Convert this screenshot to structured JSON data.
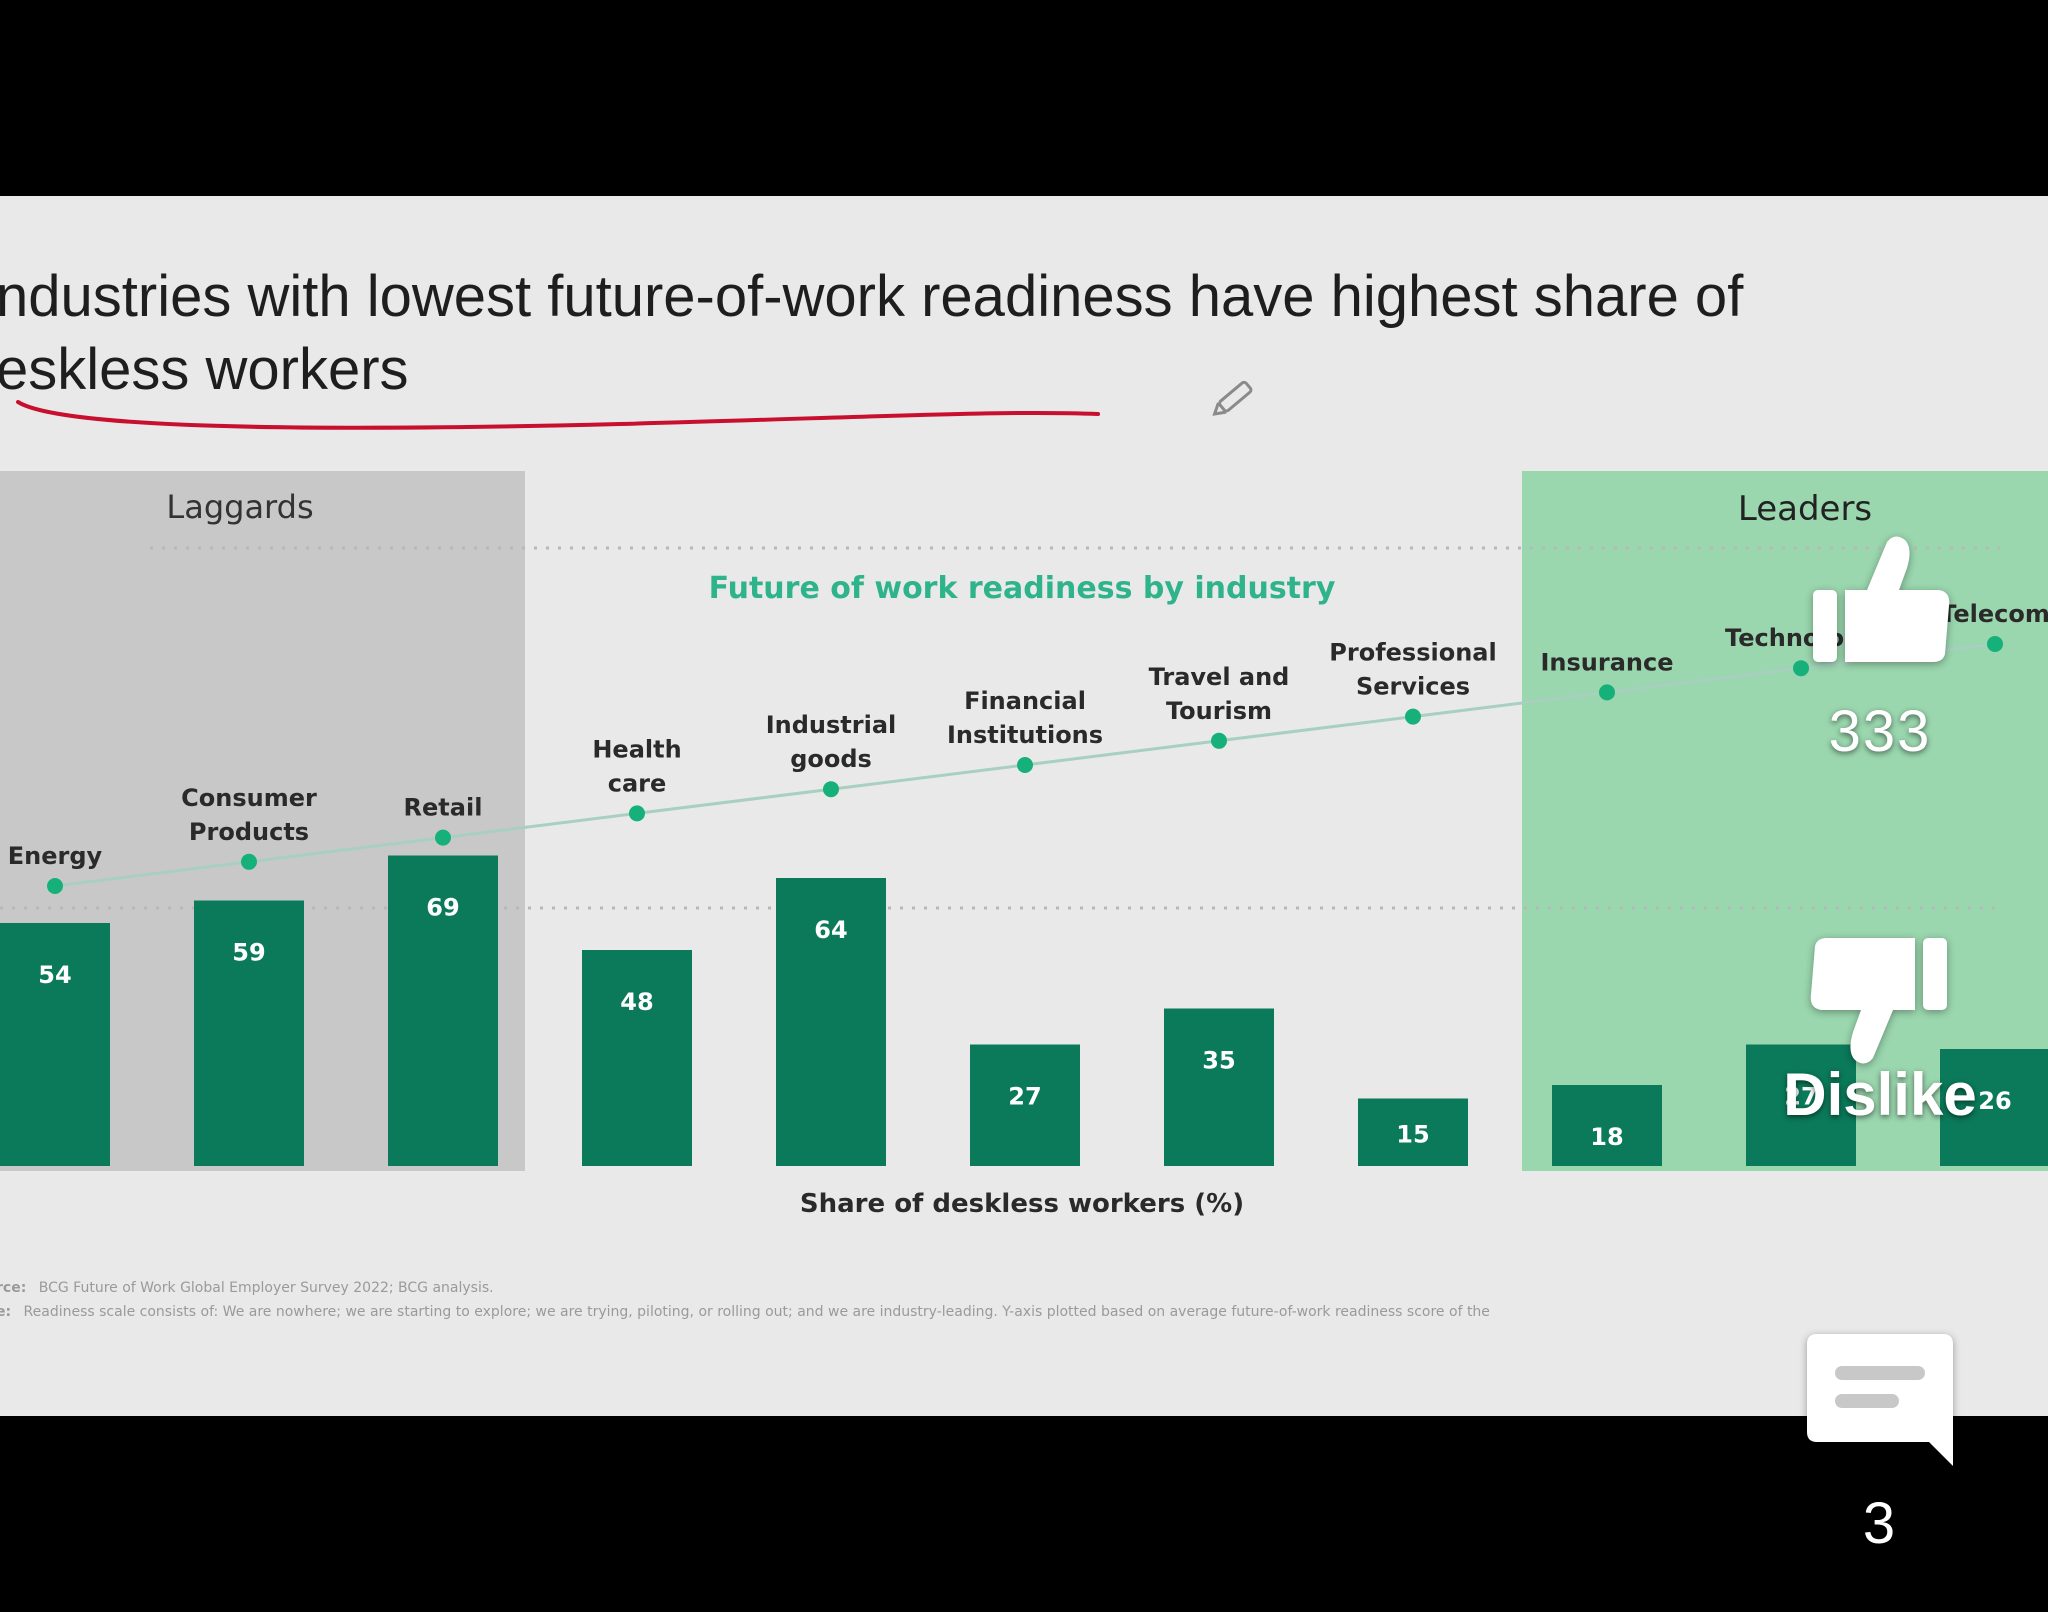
{
  "slide": {
    "title_line1": "ndustries with lowest future-of-work readiness have highest share of",
    "title_line2": "eskless workers",
    "zone_laggards": "Laggards",
    "zone_leaders": "Leaders",
    "source_label": "rce:",
    "source_text": "BCG Future of Work Global Employer Survey 2022; BCG analysis.",
    "note_label": "e:",
    "note_text": "Readiness scale consists of: We are nowhere; we are starting to explore; we are trying, piloting, or rolling out; and we are industry-leading. Y-axis plotted based on average future-of-work readiness score of the",
    "annotation_color": "#c8102e"
  },
  "chart_data": {
    "type": "bar",
    "line_title": "Future of work readiness by industry",
    "xlabel": "Share of deskless workers (%)",
    "categories": [
      [
        "Energy"
      ],
      [
        "Consumer",
        "Products"
      ],
      [
        "Retail"
      ],
      [
        "Health",
        "care"
      ],
      [
        "Industrial",
        "goods"
      ],
      [
        "Financial",
        "Institutions"
      ],
      [
        "Travel and",
        "Tourism"
      ],
      [
        "Professional",
        "Services"
      ],
      [
        "Insurance"
      ],
      [
        "Technology"
      ],
      [
        "Telecom"
      ]
    ],
    "series": [
      {
        "values": [
          54,
          59,
          69,
          48,
          64,
          27,
          35,
          15,
          18,
          27,
          26
        ]
      }
    ],
    "readiness_rank": [
      1,
      2,
      3,
      4,
      5,
      6,
      7,
      8,
      9,
      10,
      11
    ],
    "groups": {
      "laggards": [
        0,
        1,
        2
      ],
      "leaders": [
        8,
        9,
        10
      ]
    },
    "colors": {
      "bar": "#0b7a5a",
      "dot": "#16b07a",
      "line": "#a8cfc0",
      "title": "#2fb38a",
      "leaders_zone": "#9ad6ae",
      "laggards_zone": "#c8c8c8"
    }
  },
  "overlay": {
    "like_icon": "thumbs-up-icon",
    "like_count": "333",
    "dislike_icon": "thumbs-down-icon",
    "dislike_label": "Dislike",
    "comment_icon": "comment-icon",
    "comment_count": "3",
    "edit_icon": "pencil-icon"
  }
}
